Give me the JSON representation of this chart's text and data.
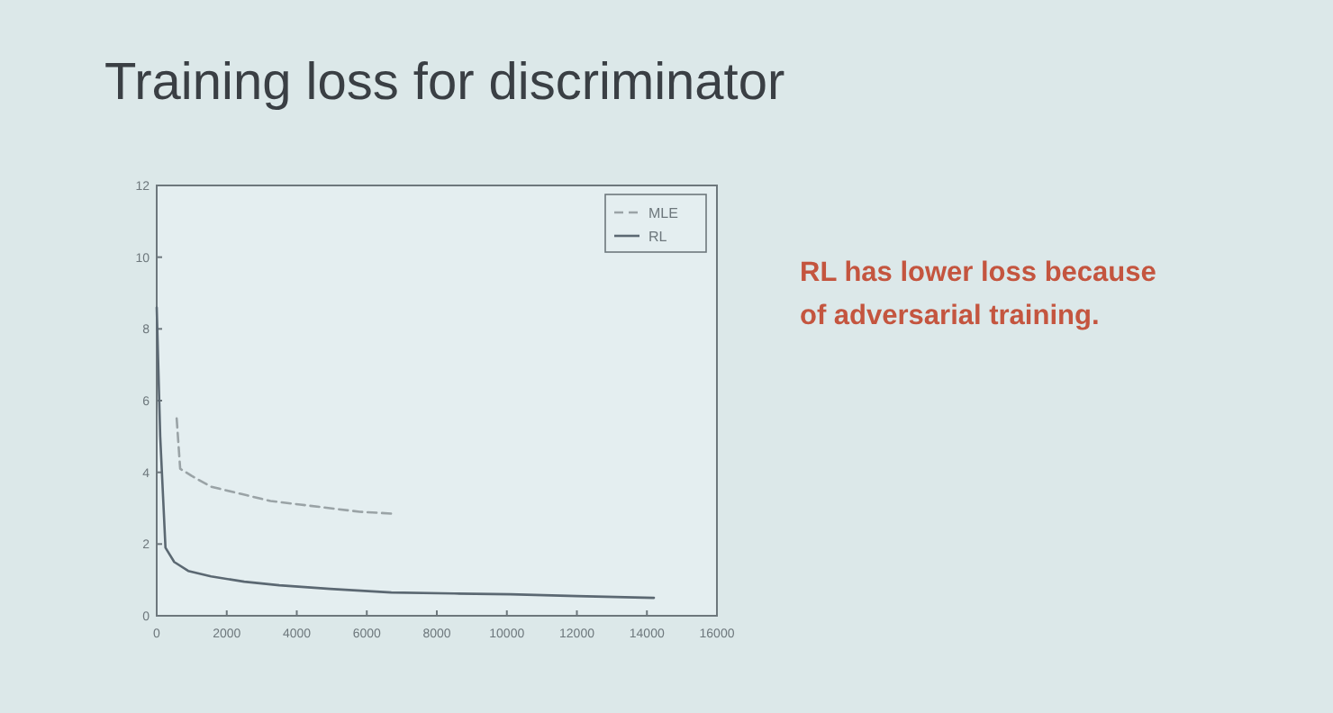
{
  "chart_data": {
    "type": "line",
    "title": "Training loss for discriminator",
    "annotations": [
      "RL has lower loss because of adversarial training."
    ],
    "xlim": [
      0,
      16000
    ],
    "xticks": [
      0,
      2000,
      4000,
      6000,
      8000,
      10000,
      12000,
      14000,
      16000
    ],
    "ylim": [
      0,
      12
    ],
    "yticks": [
      0,
      2,
      4,
      6,
      8,
      10,
      12
    ],
    "grid": false,
    "legend": "top right",
    "series": [
      {
        "name": "MLE",
        "color": "#9aa3a6",
        "line_style": "dashed",
        "x": [
          570,
          670,
          1000,
          1550,
          2400,
          3250,
          4100,
          4950,
          5800,
          6700
        ],
        "values": [
          5.5,
          4.1,
          3.9,
          3.6,
          3.4,
          3.2,
          3.1,
          3.0,
          2.9,
          2.85
        ]
      },
      {
        "name": "RL",
        "color": "#5b6872",
        "line_style": "solid",
        "x": [
          0,
          100,
          250,
          500,
          900,
          1550,
          2500,
          3500,
          4950,
          6700,
          8500,
          10100,
          12000,
          14200
        ],
        "values": [
          8.6,
          5,
          1.9,
          1.5,
          1.25,
          1.1,
          0.95,
          0.85,
          0.75,
          0.65,
          0.62,
          0.6,
          0.55,
          0.5
        ]
      }
    ]
  }
}
